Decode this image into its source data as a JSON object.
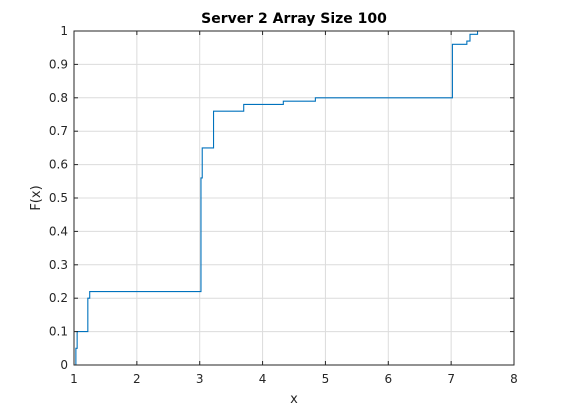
{
  "chart_data": {
    "type": "line",
    "title": "Server 2 Array Size 100",
    "xlabel": "x",
    "ylabel": "F(x)",
    "xlim": [
      1,
      8
    ],
    "ylim": [
      0,
      1
    ],
    "xticks": [
      "1",
      "2",
      "3",
      "4",
      "5",
      "6",
      "7",
      "8"
    ],
    "yticks": [
      "0",
      "0.1",
      "0.2",
      "0.3",
      "0.4",
      "0.5",
      "0.6",
      "0.7",
      "0.8",
      "0.9",
      "1"
    ],
    "grid": true,
    "series_color": "#0072BD",
    "series": [
      {
        "step": "post",
        "x": [
          1.0,
          1.03,
          1.05,
          1.22,
          1.25,
          2.0,
          3.0,
          3.02,
          3.04,
          3.2,
          3.22,
          3.5,
          3.7,
          4.0,
          4.33,
          4.5,
          4.84,
          5.0,
          6.0,
          7.0,
          7.02,
          7.2,
          7.25,
          7.3,
          7.4,
          7.42
        ],
        "y": [
          0.0,
          0.05,
          0.1,
          0.2,
          0.22,
          0.22,
          0.22,
          0.56,
          0.65,
          0.65,
          0.76,
          0.76,
          0.78,
          0.78,
          0.79,
          0.79,
          0.8,
          0.8,
          0.8,
          0.8,
          0.96,
          0.96,
          0.97,
          0.99,
          0.99,
          1.0
        ]
      }
    ]
  }
}
